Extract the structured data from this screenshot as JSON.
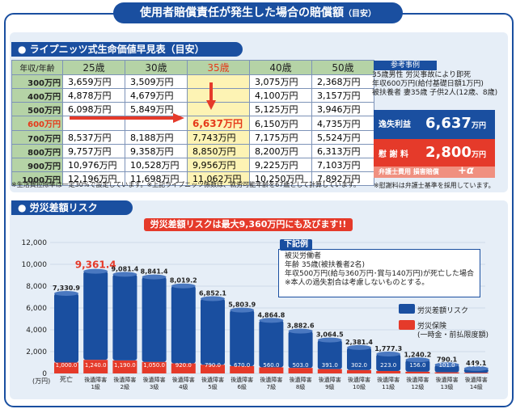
{
  "header": {
    "title": "使用者賠償責任が発生した場合の賠償額",
    "title_suffix": "（目安）"
  },
  "life_table": {
    "section_title": "● ライプニッツ式生命価値早見表（目安）",
    "corner_label": "年収/年齢",
    "ages": [
      "25歳",
      "30歳",
      "35歳",
      "40歳",
      "50歳"
    ],
    "rows": [
      {
        "income": "300万円",
        "values": [
          "3,659万円",
          "3,509万円",
          "",
          "3,075万円",
          "2,368万円"
        ]
      },
      {
        "income": "400万円",
        "values": [
          "4,878万円",
          "4,679万円",
          "",
          "4,100万円",
          "3,157万円"
        ]
      },
      {
        "income": "500万円",
        "values": [
          "6,098万円",
          "5,849万円",
          "",
          "5,125万円",
          "3,946万円"
        ]
      },
      {
        "income": "600万円",
        "values": [
          "",
          "",
          "6,637万円",
          "6,150万円",
          "4,735万円"
        ]
      },
      {
        "income": "700万円",
        "values": [
          "8,537万円",
          "8,188万円",
          "7,743万円",
          "7,175万円",
          "5,524万円"
        ]
      },
      {
        "income": "800万円",
        "values": [
          "9,757万円",
          "9,358万円",
          "8,850万円",
          "8,200万円",
          "6,313万円"
        ]
      },
      {
        "income": "900万円",
        "values": [
          "10,976万円",
          "10,528万円",
          "9,956万円",
          "9,225万円",
          "7,103万円"
        ]
      },
      {
        "income": "1000万円",
        "values": [
          "12,196万円",
          "11,698万円",
          "11,062万円",
          "10,250万円",
          "7,892万円"
        ]
      }
    ],
    "note": "※生活費控除率は一定30%で設定しています。※上記ライプニッツ係数は、就労可能年齢を67歳として計算しています。"
  },
  "reference": {
    "label": "参考事例",
    "lines": [
      "35歳男性 労災事故により即死",
      "年収600万円(給付基礎日額1万円)",
      "被扶養者 妻35歳 子供2人(12歳、8歳)"
    ],
    "lost_profit_label": "逸失利益",
    "lost_profit_value": "6,637",
    "consolation_label": "慰 謝 料",
    "consolation_value": "2,800",
    "unit": "万円",
    "lawyer_label": "弁護士費用 損害賠償",
    "lawyer_value": "+α",
    "note": "※慰謝料は弁護士基準を採用しています。"
  },
  "risk": {
    "section_title": "● 労災差額リスク",
    "banner": "労災差額リスクは最大9,360万円にも及びます!!",
    "example_title": "下記例",
    "example_lines": [
      "被災労働者",
      "年齢 35歳(被扶養者2名)",
      "年収500万円(給与360万円･賞与140万円)が死亡した場合",
      "※本人の過失割合は考慮しないものとする。"
    ],
    "legend_risk": "労災差額リスク",
    "legend_insurance": "労災保険",
    "legend_insurance_sub": "(一時金・前払限度額)"
  },
  "chart_data": {
    "type": "bar",
    "y_unit_label": "(万円)",
    "ylim": [
      0,
      12000
    ],
    "yticks": [
      "0",
      "2,000",
      "4,000",
      "6,000",
      "8,000",
      "10,000",
      "12,000"
    ],
    "categories": [
      "死亡",
      "後遺障害 1級",
      "後遺障害 2級",
      "後遺障害 3級",
      "後遺障害 4級",
      "後遺障害 5級",
      "後遺障害 6級",
      "後遺障害 7級",
      "後遺障害 8級",
      "後遺障害 9級",
      "後遺障害 10級",
      "後遺障害 11級",
      "後遺障害 12級",
      "後遺障害 13級",
      "後遺障害 14級"
    ],
    "series": [
      {
        "name": "労災差額リスク",
        "labels": [
          "7,330.9",
          "9,361.4",
          "9,081.4",
          "8,841.4",
          "8,019.2",
          "6,852.1",
          "5,803.9",
          "4,864.8",
          "3,882.6",
          "3,064.5",
          "2,381.4",
          "1,777.3",
          "1,240.2",
          "790.1",
          "449.1"
        ],
        "values": [
          7330.9,
          9361.4,
          9081.4,
          8841.4,
          8019.2,
          6852.1,
          5803.9,
          4864.8,
          3882.6,
          3064.5,
          2381.4,
          1777.3,
          1240.2,
          790.1,
          449.1
        ]
      },
      {
        "name": "労災保険 (一時金・前払限度額)",
        "labels": [
          "1,000.0",
          "1,240.0",
          "1,190.0",
          "1,050.0",
          "920.0",
          "790.0",
          "670.0",
          "560.0",
          "503.0",
          "391.0",
          "302.0",
          "223.0",
          "156.0",
          "101.0",
          "56.0"
        ],
        "values": [
          1000.0,
          1240.0,
          1190.0,
          1050.0,
          920.0,
          790.0,
          670.0,
          560.0,
          503.0,
          391.0,
          302.0,
          223.0,
          156.0,
          101.0,
          56.0
        ]
      }
    ],
    "colors": {
      "risk": "#1a4fa0",
      "insurance": "#e53a2a",
      "highlight_label": "#e53a2a"
    }
  }
}
